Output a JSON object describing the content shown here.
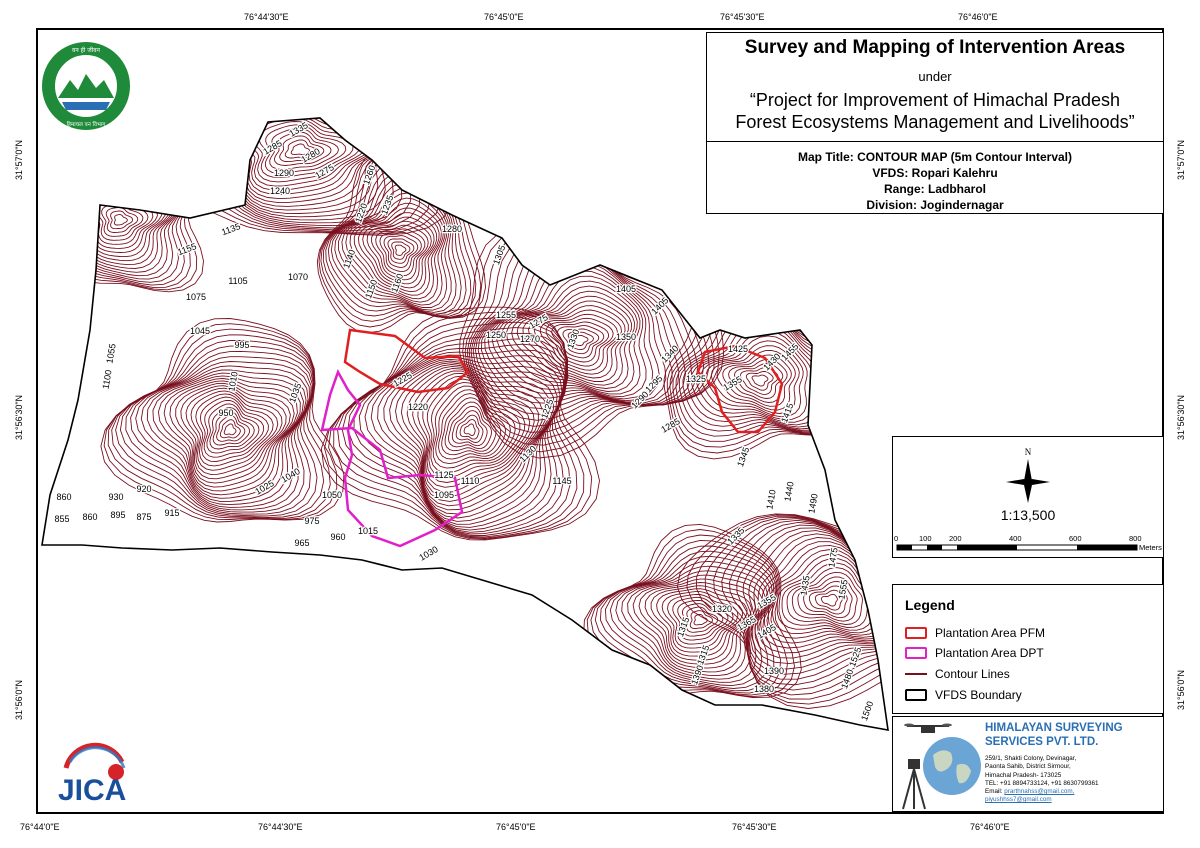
{
  "coords": {
    "top": [
      "76°44'30\"E",
      "76°45'0\"E",
      "76°45'30\"E",
      "76°46'0\"E"
    ],
    "bottom": [
      "76°44'0\"E",
      "76°44'30\"E",
      "76°45'0\"E",
      "76°45'30\"E",
      "76°46'0\"E"
    ],
    "left": [
      "31°57'0\"N",
      "31°56'30\"N",
      "31°56'0\"N"
    ],
    "right": [
      "31°57'0\"N",
      "31°56'30\"N",
      "31°56'0\"N"
    ]
  },
  "title": {
    "main": "Survey and Mapping of Intervention Areas",
    "under": "under",
    "project_line1": "“Project for Improvement of Himachal Pradesh",
    "project_line2": "Forest Ecosystems Management and Livelihoods”",
    "map_title": "Map Title: CONTOUR MAP (5m Contour Interval)",
    "vfds": "VFDS: Ropari Kalehru",
    "range": "Range: Ladbharol",
    "division": "Division: Jogindernagar"
  },
  "scale": {
    "north": "N",
    "ratio": "1:13,500",
    "ticks": [
      "0",
      "100",
      "200",
      "400",
      "600",
      "800"
    ],
    "unit": "Meters"
  },
  "legend": {
    "title": "Legend",
    "items": [
      {
        "label": "Plantation Area PFM",
        "color": "#e02020"
      },
      {
        "label": "Plantation Area DPT",
        "color": "#e020c8"
      },
      {
        "label": "Contour Lines",
        "color": "#7a0f1e"
      },
      {
        "label": "VFDS Boundary",
        "color": "#000000"
      }
    ]
  },
  "company": {
    "name_line1": "HIMALAYAN SURVEYING",
    "name_line2": "SERVICES PVT. LTD.",
    "addr1": "259/1, Shakti Colony, Devinagar,",
    "addr2": "Paonta Sahib, District Sirmour,",
    "addr3": "Himachal Pradesh- 173025",
    "tel": "TEL: +91 8894733124, +91 8630799361",
    "email_label": "Email:",
    "email1": "prarthnahss@gmail.com,",
    "email2": "piyushhss7@gmail.com"
  },
  "logos": {
    "jica": "JICA",
    "hp_forest_seal": "वन ही जीवन, हिमाचल वन विभाग"
  },
  "contour_labels": [
    {
      "t": "1335"
    },
    {
      "t": "1285"
    },
    {
      "t": "1280"
    },
    {
      "t": "1275"
    },
    {
      "t": "1290"
    },
    {
      "t": "1240"
    },
    {
      "t": "1260"
    },
    {
      "t": "1235"
    },
    {
      "t": "1220"
    },
    {
      "t": "1280"
    },
    {
      "t": "1155"
    },
    {
      "t": "1135"
    },
    {
      "t": "1140"
    },
    {
      "t": "1160"
    },
    {
      "t": "1150"
    },
    {
      "t": "1070"
    },
    {
      "t": "1105"
    },
    {
      "t": "1075"
    },
    {
      "t": "1045"
    },
    {
      "t": "995"
    },
    {
      "t": "1055"
    },
    {
      "t": "1010"
    },
    {
      "t": "1035"
    },
    {
      "t": "950"
    },
    {
      "t": "1225"
    },
    {
      "t": "1220"
    },
    {
      "t": "1305"
    },
    {
      "t": "1255"
    },
    {
      "t": "1275"
    },
    {
      "t": "1250"
    },
    {
      "t": "1270"
    },
    {
      "t": "1330"
    },
    {
      "t": "1405"
    },
    {
      "t": "1405"
    },
    {
      "t": "1350"
    },
    {
      "t": "1340"
    },
    {
      "t": "1425"
    },
    {
      "t": "1430"
    },
    {
      "t": "1455"
    },
    {
      "t": "1325"
    },
    {
      "t": "1355"
    },
    {
      "t": "1295"
    },
    {
      "t": "1290"
    },
    {
      "t": "1285"
    },
    {
      "t": "1225"
    },
    {
      "t": "1415"
    },
    {
      "t": "1345"
    },
    {
      "t": "1130"
    },
    {
      "t": "1145"
    },
    {
      "t": "1125"
    },
    {
      "t": "1110"
    },
    {
      "t": "1095"
    },
    {
      "t": "1040"
    },
    {
      "t": "1025"
    },
    {
      "t": "1050"
    },
    {
      "t": "975"
    },
    {
      "t": "960"
    },
    {
      "t": "1015"
    },
    {
      "t": "965"
    },
    {
      "t": "1030"
    },
    {
      "t": "860"
    },
    {
      "t": "930"
    },
    {
      "t": "920"
    },
    {
      "t": "855"
    },
    {
      "t": "860"
    },
    {
      "t": "895"
    },
    {
      "t": "875"
    },
    {
      "t": "915"
    },
    {
      "t": "1410"
    },
    {
      "t": "1440"
    },
    {
      "t": "1490"
    },
    {
      "t": "1335"
    },
    {
      "t": "1475"
    },
    {
      "t": "1435"
    },
    {
      "t": "1555"
    },
    {
      "t": "1320"
    },
    {
      "t": "1355"
    },
    {
      "t": "1315"
    },
    {
      "t": "1365"
    },
    {
      "t": "1405"
    },
    {
      "t": "1315"
    },
    {
      "t": "1390"
    },
    {
      "t": "1390"
    },
    {
      "t": "1380"
    },
    {
      "t": "1525"
    },
    {
      "t": "1480"
    },
    {
      "t": "1500"
    },
    {
      "t": "1100"
    }
  ]
}
